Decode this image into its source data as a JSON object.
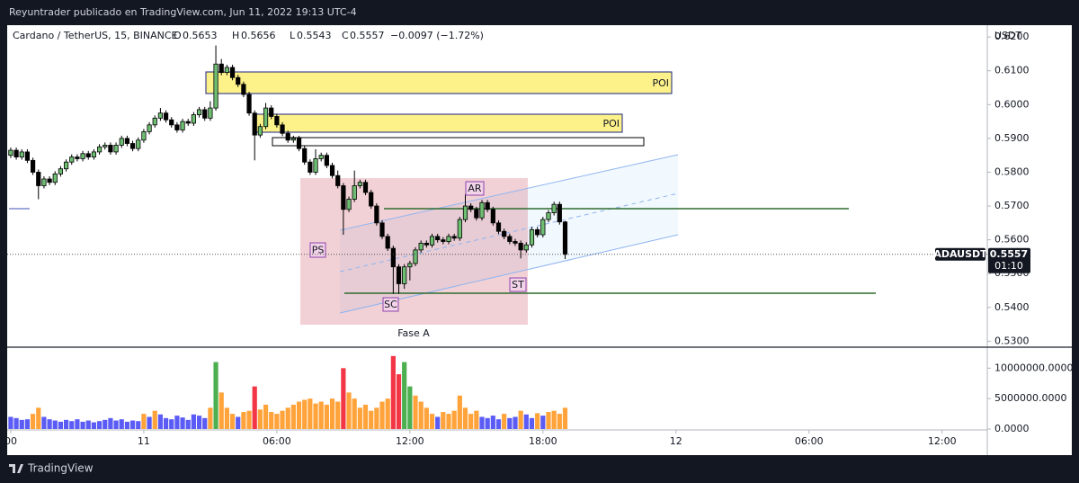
{
  "header": "Reyuntrader publicado en TradingView.com, Jun 11, 2022 19:13 UTC-4",
  "footer": "TradingView",
  "chart_data": {
    "type": "candlestick",
    "symbol": "Cardano / TetherUS, 15, BINANCE",
    "ohlc_labels": [
      "O",
      "H",
      "L",
      "C"
    ],
    "change": "−0.0097 (−1.72%)",
    "currency": "USDT",
    "ticker": "ADAUSDT",
    "countdown": "01:10",
    "annotations": {
      "poi": [
        "POI",
        "POI"
      ],
      "ps": "PS",
      "sc": "SC",
      "ar": "AR",
      "st": "ST",
      "phase": "Fase A"
    },
    "up_color": "#6fbf73",
    "down_color": "#000000",
    "volume_colors": {
      "low": "#5b5bf5",
      "mid": "#ffa33a",
      "up": "#4caf50",
      "down": "#f23645"
    },
    "volume_thresholds": [
      2500000,
      7000000
    ],
    "x": [
      -6,
      -5.75,
      -5.5,
      -5.25,
      -5,
      -4.75,
      -4.5,
      -4.25,
      -4,
      -3.75,
      -3.5,
      -3.25,
      -3,
      -2.75,
      -2.5,
      -2.25,
      -2,
      -1.75,
      -1.5,
      -1.25,
      -1,
      -0.75,
      -0.5,
      -0.25,
      0,
      0.25,
      0.5,
      0.75,
      1,
      1.25,
      1.5,
      1.75,
      2,
      2.25,
      2.5,
      2.75,
      3,
      3.25,
      3.5,
      3.75,
      4,
      4.25,
      4.5,
      4.75,
      5,
      5.25,
      5.5,
      5.75,
      6,
      6.25,
      6.5,
      6.75,
      7,
      7.25,
      7.5,
      7.75,
      8,
      8.25,
      8.5,
      8.75,
      9,
      9.25,
      9.5,
      9.75,
      10,
      10.25,
      10.5,
      10.75,
      11,
      11.25,
      11.5,
      11.75,
      12,
      12.25,
      12.5,
      12.75,
      13,
      13.25,
      13.5,
      13.75,
      14,
      14.25,
      14.5,
      14.75,
      15,
      15.25,
      15.5,
      15.75,
      16,
      16.25,
      16.5,
      16.75,
      17,
      17.25,
      17.5,
      17.75,
      18,
      18.25,
      18.5,
      18.75,
      19
    ],
    "candles": [
      [
        0.585,
        0.5873,
        0.5842,
        0.5865
      ],
      [
        0.5865,
        0.5873,
        0.5837,
        0.5845
      ],
      [
        0.5845,
        0.5868,
        0.5837,
        0.586
      ],
      [
        0.586,
        0.5868,
        0.5827,
        0.5835
      ],
      [
        0.5835,
        0.5843,
        0.5792,
        0.58
      ],
      [
        0.58,
        0.5808,
        0.572,
        0.576
      ],
      [
        0.576,
        0.5788,
        0.5752,
        0.578
      ],
      [
        0.578,
        0.5788,
        0.5762,
        0.577
      ],
      [
        0.577,
        0.5803,
        0.5762,
        0.5795
      ],
      [
        0.5795,
        0.5818,
        0.5787,
        0.581
      ],
      [
        0.581,
        0.5838,
        0.5802,
        0.583
      ],
      [
        0.583,
        0.5853,
        0.5822,
        0.5845
      ],
      [
        0.5845,
        0.5853,
        0.5832,
        0.584
      ],
      [
        0.584,
        0.5863,
        0.5832,
        0.5855
      ],
      [
        0.5855,
        0.5863,
        0.5837,
        0.5845
      ],
      [
        0.5845,
        0.5868,
        0.5837,
        0.586
      ],
      [
        0.586,
        0.5883,
        0.5852,
        0.5875
      ],
      [
        0.5875,
        0.5888,
        0.5867,
        0.588
      ],
      [
        0.588,
        0.5888,
        0.5852,
        0.586
      ],
      [
        0.586,
        0.5888,
        0.5852,
        0.588
      ],
      [
        0.588,
        0.5908,
        0.5872,
        0.59
      ],
      [
        0.59,
        0.5908,
        0.5877,
        0.5885
      ],
      [
        0.5885,
        0.5893,
        0.5862,
        0.587
      ],
      [
        0.587,
        0.5903,
        0.5862,
        0.5895
      ],
      [
        0.5895,
        0.5928,
        0.5887,
        0.592
      ],
      [
        0.592,
        0.5948,
        0.5912,
        0.594
      ],
      [
        0.594,
        0.5968,
        0.5932,
        0.596
      ],
      [
        0.596,
        0.599,
        0.5952,
        0.5975
      ],
      [
        0.5975,
        0.5983,
        0.5947,
        0.5955
      ],
      [
        0.5955,
        0.5963,
        0.5932,
        0.594
      ],
      [
        0.594,
        0.5948,
        0.5917,
        0.5925
      ],
      [
        0.5925,
        0.5958,
        0.5917,
        0.595
      ],
      [
        0.595,
        0.5958,
        0.5937,
        0.5945
      ],
      [
        0.5945,
        0.5978,
        0.5937,
        0.597
      ],
      [
        0.597,
        0.5993,
        0.5962,
        0.5985
      ],
      [
        0.5985,
        0.5993,
        0.5952,
        0.596
      ],
      [
        0.596,
        0.601,
        0.5952,
        0.599
      ],
      [
        0.599,
        0.6175,
        0.5982,
        0.612
      ],
      [
        0.612,
        0.6135,
        0.6087,
        0.6095
      ],
      [
        0.6095,
        0.6118,
        0.6087,
        0.611
      ],
      [
        0.611,
        0.6118,
        0.6072,
        0.608
      ],
      [
        0.608,
        0.6088,
        0.6052,
        0.606
      ],
      [
        0.606,
        0.6068,
        0.6022,
        0.603
      ],
      [
        0.603,
        0.6038,
        0.5967,
        0.5975
      ],
      [
        0.5975,
        0.5983,
        0.5835,
        0.591
      ],
      [
        0.591,
        0.5943,
        0.5902,
        0.5935
      ],
      [
        0.5935,
        0.6005,
        0.5927,
        0.599
      ],
      [
        0.599,
        0.5998,
        0.5957,
        0.5965
      ],
      [
        0.5965,
        0.5973,
        0.5932,
        0.594
      ],
      [
        0.594,
        0.5948,
        0.5907,
        0.5915
      ],
      [
        0.5915,
        0.5923,
        0.5887,
        0.5895
      ],
      [
        0.5895,
        0.5908,
        0.5887,
        0.59
      ],
      [
        0.59,
        0.5908,
        0.5862,
        0.587
      ],
      [
        0.587,
        0.5878,
        0.5822,
        0.583
      ],
      [
        0.583,
        0.5838,
        0.5792,
        0.58
      ],
      [
        0.58,
        0.5868,
        0.5792,
        0.584
      ],
      [
        0.584,
        0.5858,
        0.5832,
        0.585
      ],
      [
        0.585,
        0.5858,
        0.5812,
        0.582
      ],
      [
        0.582,
        0.5828,
        0.5782,
        0.579
      ],
      [
        0.579,
        0.5805,
        0.5752,
        0.576
      ],
      [
        0.576,
        0.5768,
        0.5615,
        0.569
      ],
      [
        0.569,
        0.5728,
        0.5682,
        0.572
      ],
      [
        0.572,
        0.5805,
        0.5712,
        0.576
      ],
      [
        0.576,
        0.5778,
        0.5752,
        0.577
      ],
      [
        0.577,
        0.5778,
        0.5732,
        0.574
      ],
      [
        0.574,
        0.5748,
        0.5692,
        0.57
      ],
      [
        0.57,
        0.5708,
        0.5642,
        0.565
      ],
      [
        0.565,
        0.5658,
        0.5602,
        0.561
      ],
      [
        0.561,
        0.5618,
        0.5567,
        0.5575
      ],
      [
        0.5575,
        0.5583,
        0.544,
        0.552
      ],
      [
        0.552,
        0.5528,
        0.544,
        0.547
      ],
      [
        0.547,
        0.5528,
        0.5455,
        0.552
      ],
      [
        0.552,
        0.5538,
        0.548,
        0.553
      ],
      [
        0.553,
        0.5578,
        0.5522,
        0.557
      ],
      [
        0.557,
        0.5598,
        0.5562,
        0.559
      ],
      [
        0.559,
        0.5598,
        0.5577,
        0.5585
      ],
      [
        0.5585,
        0.5618,
        0.5577,
        0.561
      ],
      [
        0.561,
        0.5618,
        0.5592,
        0.56
      ],
      [
        0.56,
        0.5608,
        0.5587,
        0.5595
      ],
      [
        0.5595,
        0.5618,
        0.5587,
        0.561
      ],
      [
        0.561,
        0.5618,
        0.5597,
        0.5605
      ],
      [
        0.5605,
        0.5668,
        0.5597,
        0.566
      ],
      [
        0.566,
        0.5735,
        0.5652,
        0.57
      ],
      [
        0.57,
        0.5708,
        0.5682,
        0.569
      ],
      [
        0.569,
        0.5698,
        0.5657,
        0.5665
      ],
      [
        0.5665,
        0.5718,
        0.5657,
        0.571
      ],
      [
        0.571,
        0.5718,
        0.5682,
        0.569
      ],
      [
        0.569,
        0.5698,
        0.5642,
        0.565
      ],
      [
        0.565,
        0.5658,
        0.5617,
        0.5625
      ],
      [
        0.5625,
        0.5633,
        0.5602,
        0.561
      ],
      [
        0.561,
        0.5618,
        0.5587,
        0.5595
      ],
      [
        0.5595,
        0.5603,
        0.5582,
        0.559
      ],
      [
        0.559,
        0.5598,
        0.5545,
        0.557
      ],
      [
        0.557,
        0.5593,
        0.5562,
        0.5585
      ],
      [
        0.5585,
        0.5638,
        0.5577,
        0.563
      ],
      [
        0.563,
        0.5638,
        0.5607,
        0.5615
      ],
      [
        0.5615,
        0.5668,
        0.5607,
        0.566
      ],
      [
        0.566,
        0.5688,
        0.5652,
        0.568
      ],
      [
        0.568,
        0.5713,
        0.5672,
        0.5705
      ],
      [
        0.5705,
        0.5713,
        0.5645,
        0.5653
      ],
      [
        0.5653,
        0.5656,
        0.5543,
        0.5557
      ]
    ],
    "volumes": [
      2000000,
      1800000,
      1500000,
      1600000,
      2500000,
      3500000,
      2000000,
      1600000,
      1400000,
      1200000,
      1500000,
      1300000,
      1600000,
      1200000,
      1400000,
      1100000,
      1300000,
      1500000,
      1800000,
      1400000,
      1600000,
      1200000,
      1400000,
      1300000,
      2500000,
      2000000,
      3000000,
      2400000,
      1800000,
      1600000,
      2200000,
      1900000,
      1500000,
      2400000,
      2200000,
      1800000,
      3500000,
      11000000,
      6000000,
      3500000,
      2500000,
      2000000,
      2800000,
      3000000,
      7000000,
      3200000,
      4000000,
      2800000,
      2500000,
      3000000,
      3500000,
      4000000,
      4500000,
      4800000,
      5000000,
      4200000,
      4500000,
      4000000,
      5000000,
      4500000,
      10000000,
      6000000,
      5000000,
      3500000,
      4000000,
      3000000,
      3500000,
      4500000,
      5000000,
      12000000,
      9000000,
      11000000,
      7000000,
      5500000,
      4500000,
      3500000,
      2500000,
      2000000,
      2800000,
      2500000,
      3000000,
      5500000,
      3500000,
      2500000,
      3000000,
      2000000,
      1800000,
      2200000,
      1600000,
      2500000,
      1800000,
      2000000,
      3000000,
      2400000,
      1800000,
      2600000,
      2200000,
      2800000,
      3000000,
      2500000,
      3500000
    ],
    "xlim": [
      -6.2,
      38.2
    ],
    "xticks": [
      {
        "value": -6,
        "label": "00"
      },
      {
        "value": 0,
        "label": "11"
      },
      {
        "value": 6,
        "label": "06:00"
      },
      {
        "value": 12,
        "label": "12:00"
      },
      {
        "value": 18,
        "label": "18:00"
      },
      {
        "value": 24,
        "label": "12"
      },
      {
        "value": 30,
        "label": "06:00"
      },
      {
        "value": 36,
        "label": "12:00"
      }
    ],
    "ylim": [
      0.5285,
      0.6235
    ],
    "yticks": [
      {
        "value": 0.62,
        "label": "0.6200"
      },
      {
        "value": 0.61,
        "label": "0.6100"
      },
      {
        "value": 0.6,
        "label": "0.6000"
      },
      {
        "value": 0.59,
        "label": "0.5900"
      },
      {
        "value": 0.58,
        "label": "0.5800"
      },
      {
        "value": 0.57,
        "label": "0.5700"
      },
      {
        "value": 0.56,
        "label": "0.5600"
      },
      {
        "value": 0.55,
        "label": "0.5500"
      },
      {
        "value": 0.54,
        "label": "0.5400"
      },
      {
        "value": 0.53,
        "label": "0.5300"
      }
    ],
    "y2lim": [
      0,
      13300000
    ],
    "y2ticks": [
      {
        "value": 0,
        "label": "0.0000"
      },
      {
        "value": 5000000,
        "label": "5000000.0000"
      },
      {
        "value": 10000000,
        "label": "10000000.0000"
      }
    ]
  }
}
